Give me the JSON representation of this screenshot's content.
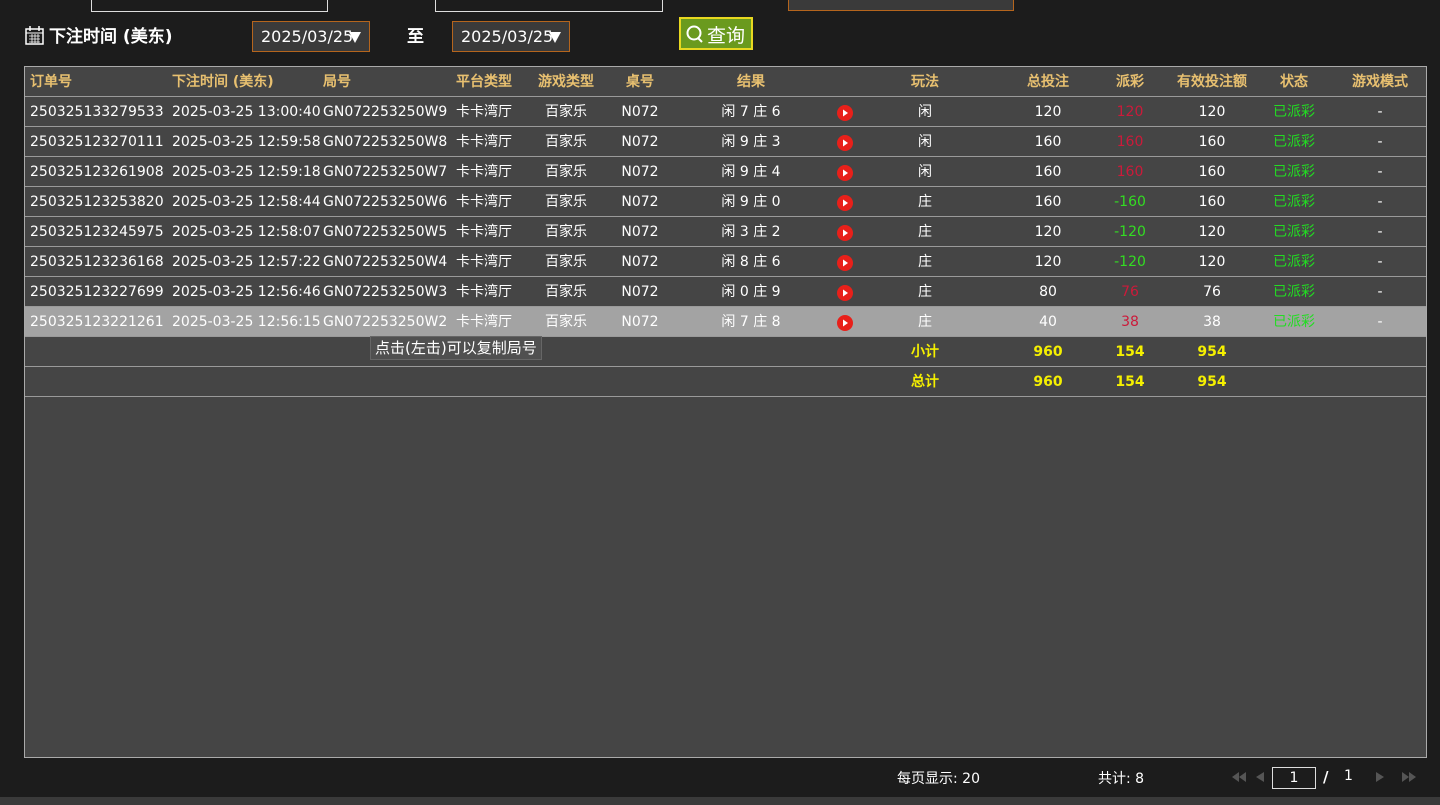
{
  "filters": {
    "bet_time_label": "下注时间 (美东)",
    "date_from": "2025/03/25",
    "to_label": "至",
    "date_to": "2025/03/25",
    "query_button": "查询"
  },
  "table": {
    "headers": [
      "订单号",
      "下注时间 (美东)",
      "局号",
      "平台类型",
      "游戏类型",
      "桌号",
      "结果",
      null,
      "玩法",
      "总投注",
      "派彩",
      "有效投注额",
      "状态",
      "游戏模式"
    ],
    "rows": [
      [
        "250325133279533",
        "2025-03-25 13:00:40",
        "GN072253250W9",
        "卡卡湾厅",
        "百家乐",
        "N072",
        "闲 7 庄 6",
        "闲",
        120,
        120,
        120,
        "已派彩",
        "-"
      ],
      [
        "250325123270111",
        "2025-03-25 12:59:58",
        "GN072253250W8",
        "卡卡湾厅",
        "百家乐",
        "N072",
        "闲 9 庄 3",
        "闲",
        160,
        160,
        160,
        "已派彩",
        "-"
      ],
      [
        "250325123261908",
        "2025-03-25 12:59:18",
        "GN072253250W7",
        "卡卡湾厅",
        "百家乐",
        "N072",
        "闲 9 庄 4",
        "闲",
        160,
        160,
        160,
        "已派彩",
        "-"
      ],
      [
        "250325123253820",
        "2025-03-25 12:58:44",
        "GN072253250W6",
        "卡卡湾厅",
        "百家乐",
        "N072",
        "闲 9 庄 0",
        "庄",
        160,
        -160,
        160,
        "已派彩",
        "-"
      ],
      [
        "250325123245975",
        "2025-03-25 12:58:07",
        "GN072253250W5",
        "卡卡湾厅",
        "百家乐",
        "N072",
        "闲 3 庄 2",
        "庄",
        120,
        -120,
        120,
        "已派彩",
        "-"
      ],
      [
        "250325123236168",
        "2025-03-25 12:57:22",
        "GN072253250W4",
        "卡卡湾厅",
        "百家乐",
        "N072",
        "闲 8 庄 6",
        "庄",
        120,
        -120,
        120,
        "已派彩",
        "-"
      ],
      [
        "250325123227699",
        "2025-03-25 12:56:46",
        "GN072253250W3",
        "卡卡湾厅",
        "百家乐",
        "N072",
        "闲 0 庄 9",
        "庄",
        80,
        76,
        76,
        "已派彩",
        "-"
      ],
      [
        "250325123221261",
        "2025-03-25 12:56:15",
        "GN072253250W2",
        "卡卡湾厅",
        "百家乐",
        "N072",
        "闲 7 庄 8",
        "庄",
        40,
        38,
        38,
        "已派彩",
        "-"
      ]
    ],
    "subtotal": {
      "label": "小计",
      "bet": 960,
      "payout": 154,
      "valid": 954
    },
    "total": {
      "label": "总计",
      "bet": 960,
      "payout": 154,
      "valid": 954
    },
    "tooltip": "点击(左击)可以复制局号"
  },
  "footer": {
    "page_size": "每页显示: 20",
    "count": "共计: 8",
    "page": "1",
    "separator": "/",
    "pages": "1"
  }
}
